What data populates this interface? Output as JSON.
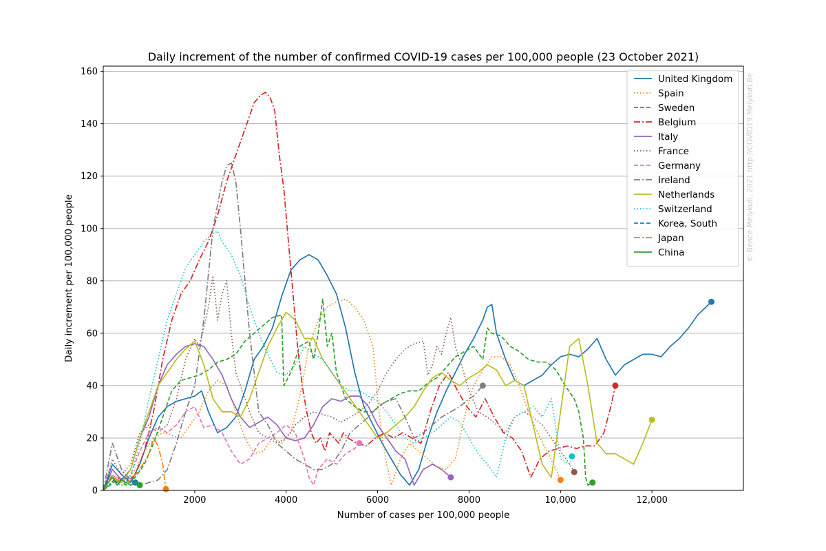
{
  "chart_data": {
    "type": "line",
    "title": "Daily increment of the number of confirmed COVID-19 cases per 100,000 people (23 October 2021)",
    "xlabel": "Number of cases per 100,000 people",
    "ylabel": "Daily increment per 100,000 people",
    "xlim": [
      0,
      14000
    ],
    "ylim": [
      0,
      162
    ],
    "xticks": [
      2000,
      4000,
      6000,
      8000,
      10000,
      12000
    ],
    "xtick_labels": [
      "2000",
      "4000",
      "6000",
      "8000",
      "10,000",
      "12,000"
    ],
    "yticks": [
      0,
      20,
      40,
      60,
      80,
      100,
      120,
      140,
      160
    ],
    "ytick_labels": [
      "0",
      "20",
      "40",
      "60",
      "80",
      "100",
      "120",
      "140",
      "160"
    ],
    "grid": "horizontal",
    "legend_position": "top-right",
    "watermark": "© Bence Melykuti, 2021   http://COVID19.Melykuti.Be",
    "series": [
      {
        "name": "United Kingdom",
        "color": "#1f77b4",
        "style": "solid",
        "x": [
          0,
          200,
          400,
          600,
          800,
          1000,
          1200,
          1400,
          1600,
          1800,
          2000,
          2150,
          2300,
          2500,
          2700,
          2900,
          3100,
          3300,
          3500,
          3700,
          3900,
          4100,
          4300,
          4500,
          4700,
          4900,
          5100,
          5300,
          5500,
          5700,
          5900,
          6100,
          6300,
          6500,
          6700,
          6900,
          7100,
          7300,
          7500,
          7700,
          7900,
          8100,
          8300,
          8400,
          8500,
          8600,
          8800,
          9000,
          9200,
          9400,
          9600,
          9800,
          10000,
          10200,
          10400,
          10600,
          10800,
          11000,
          11200,
          11400,
          11600,
          11800,
          12000,
          12200,
          12400,
          12600,
          12800,
          13000,
          13300
        ],
        "y": [
          0,
          10,
          6,
          3,
          10,
          20,
          28,
          32,
          34,
          35,
          36,
          38,
          30,
          22,
          24,
          28,
          38,
          50,
          55,
          62,
          74,
          84,
          88,
          90,
          88,
          82,
          75,
          62,
          45,
          32,
          25,
          18,
          12,
          6,
          2,
          8,
          20,
          30,
          38,
          45,
          52,
          58,
          65,
          70,
          71,
          60,
          50,
          42,
          40,
          42,
          44,
          48,
          51,
          52,
          51,
          54,
          58,
          50,
          44,
          48,
          50,
          52,
          52,
          51,
          55,
          58,
          62,
          67,
          72
        ]
      },
      {
        "name": "Spain",
        "color": "#ff7f0e",
        "style": "dotted",
        "x": [
          0,
          300,
          500,
          700,
          900,
          1100,
          1300,
          1500,
          1700,
          1900,
          2100,
          2300,
          2500,
          2700,
          2900,
          3100,
          3300,
          3500,
          3700,
          3900,
          4100,
          4300,
          4500,
          4700,
          4900,
          5100,
          5300,
          5500,
          5700,
          5900,
          6000,
          6100,
          6200,
          6300,
          6500,
          6700,
          6900,
          7100,
          7300,
          7500,
          7700,
          7900,
          8100,
          8300,
          8500,
          8700,
          8900,
          9100,
          9300,
          9500,
          9700,
          9900,
          10000
        ],
        "y": [
          0,
          5,
          3,
          8,
          15,
          20,
          22,
          21,
          20,
          25,
          30,
          38,
          42,
          40,
          30,
          20,
          14,
          15,
          20,
          18,
          22,
          36,
          55,
          65,
          70,
          72,
          73,
          70,
          65,
          55,
          35,
          20,
          10,
          2,
          12,
          18,
          15,
          12,
          9,
          8,
          12,
          28,
          40,
          46,
          51,
          51,
          48,
          40,
          30,
          22,
          15,
          8,
          4
        ]
      },
      {
        "name": "Sweden",
        "color": "#2ca02c",
        "style": "dashed",
        "x": [
          0,
          300,
          500,
          700,
          900,
          1100,
          1300,
          1500,
          1700,
          1900,
          2100,
          2300,
          2500,
          2700,
          2900,
          3100,
          3300,
          3500,
          3700,
          3900,
          3950,
          4100,
          4300,
          4500,
          4600,
          4700,
          4800,
          4900,
          5000,
          5100,
          5300,
          5500,
          5700,
          5900,
          6100,
          6300,
          6500,
          6700,
          6900,
          7100,
          7300,
          7500,
          7700,
          7900,
          8100,
          8300,
          8400,
          8500,
          8700,
          8900,
          9100,
          9300,
          9500,
          9700,
          9900,
          10100,
          10300,
          10400,
          10500,
          10550,
          10600,
          10700
        ],
        "y": [
          0,
          4,
          2,
          5,
          10,
          18,
          28,
          38,
          42,
          43,
          44,
          46,
          49,
          50,
          52,
          57,
          60,
          63,
          66,
          67,
          40,
          45,
          55,
          57,
          50,
          60,
          73,
          55,
          60,
          45,
          35,
          32,
          30,
          30,
          33,
          35,
          37,
          38,
          38,
          41,
          43,
          47,
          51,
          53,
          55,
          50,
          62,
          60,
          59,
          55,
          53,
          50,
          49,
          49,
          46,
          40,
          35,
          30,
          20,
          5,
          2,
          3
        ]
      },
      {
        "name": "Belgium",
        "color": "#d62728",
        "style": "dashdot",
        "x": [
          0,
          300,
          500,
          700,
          900,
          1100,
          1300,
          1500,
          1700,
          1900,
          2100,
          2300,
          2500,
          2700,
          2900,
          3100,
          3300,
          3450,
          3550,
          3650,
          3750,
          3850,
          3950,
          4050,
          4150,
          4250,
          4350,
          4450,
          4550,
          4650,
          4750,
          4850,
          4950,
          5050,
          5150,
          5250,
          5350,
          5550,
          5750,
          5950,
          6150,
          6350,
          6550,
          6750,
          6950,
          7150,
          7350,
          7550,
          7750,
          7950,
          8150,
          8350,
          8550,
          8750,
          8950,
          9150,
          9350,
          9550,
          9750,
          9950,
          10150,
          10350,
          10550,
          10750,
          10950,
          11100,
          11200
        ],
        "y": [
          0,
          5,
          3,
          6,
          15,
          30,
          50,
          65,
          75,
          80,
          88,
          95,
          105,
          118,
          128,
          138,
          148,
          151,
          152,
          150,
          145,
          128,
          115,
          95,
          75,
          55,
          40,
          30,
          22,
          18,
          20,
          15,
          22,
          20,
          18,
          22,
          20,
          18,
          17,
          20,
          22,
          20,
          22,
          20,
          18,
          30,
          40,
          45,
          38,
          32,
          28,
          35,
          28,
          22,
          20,
          15,
          5,
          12,
          15,
          16,
          17,
          16,
          17,
          17,
          22,
          32,
          40
        ]
      },
      {
        "name": "Italy",
        "color": "#9467bd",
        "style": "solid",
        "x": [
          0,
          200,
          400,
          600,
          800,
          1000,
          1200,
          1400,
          1600,
          1800,
          2000,
          2200,
          2400,
          2600,
          2800,
          3000,
          3200,
          3400,
          3600,
          3800,
          4000,
          4200,
          4400,
          4600,
          4800,
          5000,
          5200,
          5400,
          5600,
          5800,
          6000,
          6200,
          6400,
          6600,
          6800,
          7000,
          7200,
          7400,
          7600
        ],
        "y": [
          0,
          8,
          4,
          8,
          20,
          28,
          40,
          48,
          52,
          55,
          56,
          55,
          50,
          44,
          35,
          28,
          24,
          26,
          28,
          25,
          20,
          19,
          20,
          25,
          32,
          35,
          34,
          36,
          36,
          32,
          25,
          20,
          15,
          12,
          2,
          8,
          10,
          8,
          5
        ]
      },
      {
        "name": "France",
        "color": "#8c564b",
        "style": "dotted",
        "x": [
          0,
          200,
          400,
          600,
          800,
          1000,
          1200,
          1400,
          1600,
          1800,
          2000,
          2100,
          2200,
          2300,
          2400,
          2500,
          2600,
          2700,
          2800,
          2900,
          3000,
          3200,
          3400,
          3600,
          3800,
          4000,
          4200,
          4400,
          4600,
          4800,
          5000,
          5200,
          5400,
          5600,
          5800,
          6000,
          6200,
          6400,
          6600,
          6800,
          7000,
          7100,
          7200,
          7300,
          7400,
          7500,
          7600,
          7700,
          7800,
          8000,
          8200,
          8400,
          8600,
          8800,
          9000,
          9200,
          9400,
          9600,
          9800,
          10000,
          10200,
          10300
        ],
        "y": [
          0,
          12,
          6,
          10,
          22,
          25,
          22,
          25,
          35,
          50,
          58,
          55,
          62,
          70,
          82,
          65,
          75,
          80,
          60,
          45,
          40,
          30,
          22,
          20,
          18,
          20,
          25,
          28,
          30,
          29,
          28,
          26,
          28,
          30,
          33,
          38,
          45,
          50,
          54,
          56,
          57,
          44,
          48,
          55,
          52,
          60,
          66,
          55,
          50,
          38,
          30,
          28,
          25,
          22,
          28,
          30,
          28,
          25,
          20,
          15,
          10,
          7
        ]
      },
      {
        "name": "Germany",
        "color": "#e377c2",
        "style": "dashed",
        "x": [
          0,
          200,
          400,
          600,
          800,
          1000,
          1200,
          1400,
          1600,
          1800,
          2000,
          2200,
          2400,
          2600,
          2800,
          3000,
          3200,
          3400,
          3600,
          3800,
          4000,
          4200,
          4400,
          4500,
          4600,
          4700,
          4900,
          5100,
          5300,
          5500,
          5600
        ],
        "y": [
          0,
          6,
          3,
          6,
          15,
          22,
          24,
          22,
          25,
          30,
          32,
          24,
          25,
          22,
          15,
          10,
          12,
          18,
          20,
          22,
          25,
          22,
          12,
          5,
          2,
          8,
          12,
          10,
          14,
          16,
          18
        ]
      },
      {
        "name": "Ireland",
        "color": "#7f7f7f",
        "style": "dashdot",
        "x": [
          0,
          200,
          400,
          600,
          800,
          1000,
          1200,
          1400,
          1600,
          1800,
          2000,
          2200,
          2400,
          2600,
          2700,
          2800,
          2900,
          3000,
          3100,
          3200,
          3300,
          3400,
          3600,
          3800,
          4000,
          4200,
          4400,
          4600,
          4800,
          5000,
          5200,
          5400,
          5600,
          5800,
          6000,
          6200,
          6400,
          6600,
          6800,
          7000,
          7200,
          7400,
          7600,
          7800,
          8000,
          8100,
          8200,
          8300
        ],
        "y": [
          0,
          18,
          8,
          4,
          2,
          3,
          4,
          8,
          18,
          30,
          40,
          65,
          100,
          118,
          124,
          125,
          118,
          100,
          80,
          60,
          45,
          30,
          25,
          18,
          15,
          12,
          10,
          8,
          8,
          10,
          15,
          22,
          25,
          28,
          32,
          34,
          35,
          28,
          20,
          22,
          25,
          28,
          30,
          32,
          35,
          36,
          38,
          40
        ]
      },
      {
        "name": "Netherlands",
        "color": "#bcbd22",
        "style": "solid",
        "x": [
          0,
          200,
          400,
          600,
          800,
          1000,
          1200,
          1400,
          1600,
          1800,
          2000,
          2200,
          2400,
          2600,
          2800,
          3000,
          3200,
          3400,
          3600,
          3800,
          4000,
          4200,
          4400,
          4600,
          4800,
          5000,
          5200,
          5400,
          5600,
          5800,
          6000,
          6200,
          6400,
          6600,
          6800,
          7000,
          7200,
          7400,
          7600,
          7800,
          8000,
          8200,
          8400,
          8600,
          8800,
          9000,
          9200,
          9400,
          9600,
          9800,
          10000,
          10200,
          10400,
          10600,
          10800,
          11000,
          11200,
          11400,
          11600,
          11800,
          12000
        ],
        "y": [
          0,
          5,
          3,
          8,
          20,
          30,
          40,
          45,
          50,
          54,
          57,
          48,
          35,
          30,
          30,
          28,
          35,
          45,
          55,
          62,
          68,
          65,
          58,
          58,
          50,
          45,
          40,
          35,
          30,
          25,
          20,
          22,
          25,
          28,
          32,
          38,
          43,
          45,
          42,
          40,
          43,
          45,
          48,
          46,
          40,
          42,
          40,
          25,
          10,
          5,
          30,
          55,
          58,
          40,
          18,
          14,
          14,
          12,
          10,
          18,
          27
        ]
      },
      {
        "name": "Switzerland",
        "color": "#17becf",
        "style": "dotted",
        "x": [
          0,
          200,
          400,
          600,
          800,
          1000,
          1200,
          1400,
          1600,
          1800,
          2000,
          2200,
          2400,
          2500,
          2600,
          2800,
          3000,
          3200,
          3400,
          3600,
          3800,
          4000,
          4200,
          4400,
          4600,
          4800,
          5000,
          5200,
          5400,
          5600,
          5800,
          6000,
          6200,
          6400,
          6600,
          6800,
          7000,
          7200,
          7400,
          7600,
          7800,
          8000,
          8200,
          8400,
          8600,
          8800,
          9000,
          9200,
          9400,
          9600,
          9800,
          10000,
          10200,
          10250
        ],
        "y": [
          0,
          3,
          2,
          5,
          18,
          35,
          50,
          65,
          75,
          85,
          90,
          95,
          98,
          99,
          95,
          90,
          82,
          70,
          60,
          52,
          45,
          44,
          48,
          55,
          52,
          50,
          45,
          40,
          38,
          38,
          36,
          34,
          30,
          25,
          20,
          18,
          20,
          22,
          25,
          28,
          26,
          20,
          14,
          10,
          5,
          20,
          28,
          30,
          32,
          28,
          35,
          12,
          10,
          13
        ]
      },
      {
        "name": "Korea, South",
        "color": "#1f77b4",
        "style": "dashed",
        "x": [
          0,
          150,
          300,
          450,
          600,
          700
        ],
        "y": [
          0,
          6,
          3,
          5,
          4,
          3
        ]
      },
      {
        "name": "Japan",
        "color": "#ff7f0e",
        "style": "dashdot",
        "x": [
          0,
          200,
          400,
          600,
          800,
          1000,
          1100,
          1200,
          1300,
          1370
        ],
        "y": [
          0,
          6,
          2,
          4,
          8,
          14,
          20,
          17,
          10,
          0.5
        ]
      },
      {
        "name": "China",
        "color": "#2ca02c",
        "style": "solid",
        "x": [
          0,
          100,
          200,
          300,
          400,
          500,
          600,
          700,
          800
        ],
        "y": [
          0,
          3,
          5,
          2,
          4,
          3,
          2,
          3,
          2
        ]
      }
    ]
  }
}
